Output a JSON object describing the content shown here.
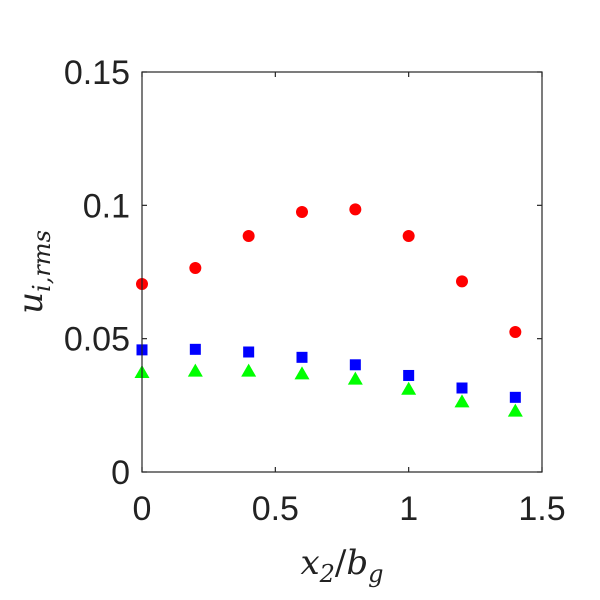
{
  "chart_data": {
    "type": "scatter",
    "xlabel": {
      "base": "x",
      "sub": "2",
      "sep": "/",
      "base2": "b",
      "sub2": "g"
    },
    "ylabel": {
      "base": "u",
      "sub": "i,rms"
    },
    "xlim": [
      0,
      1.5
    ],
    "ylim": [
      0,
      0.15
    ],
    "xticks": [
      0,
      0.5,
      1,
      1.5
    ],
    "xtick_labels": [
      "0",
      "0.5",
      "1",
      "1.5"
    ],
    "yticks": [
      0,
      0.05,
      0.1,
      0.15
    ],
    "ytick_labels": [
      "0",
      "0.05",
      "0.1",
      "0.15"
    ],
    "grid": false,
    "x": [
      0,
      0.2,
      0.4,
      0.6,
      0.8,
      1.0,
      1.2,
      1.4
    ],
    "series": [
      {
        "marker": "circle",
        "color": "#ff0000",
        "values": [
          0.0705,
          0.0765,
          0.0885,
          0.0975,
          0.0985,
          0.0885,
          0.0715,
          0.0525
        ]
      },
      {
        "marker": "square",
        "color": "#0000ff",
        "values": [
          0.0458,
          0.046,
          0.045,
          0.043,
          0.0402,
          0.0362,
          0.0315,
          0.028
        ]
      },
      {
        "marker": "triangle",
        "color": "#00ff00",
        "values": [
          0.0375,
          0.038,
          0.038,
          0.037,
          0.035,
          0.0312,
          0.0265,
          0.023
        ]
      }
    ]
  }
}
